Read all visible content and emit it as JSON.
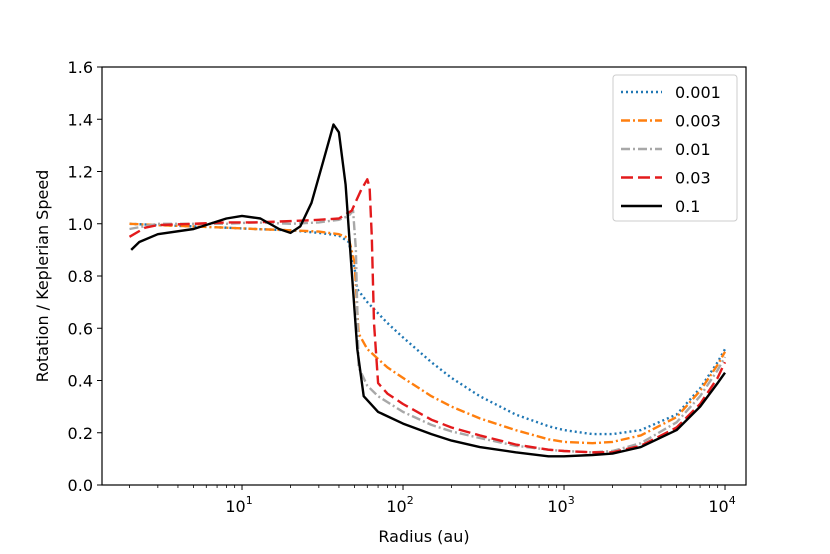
{
  "chart_data": {
    "type": "line",
    "title": "",
    "xlabel": "Radius (au)",
    "ylabel": "Rotation / Keplerian Speed",
    "xscale": "log",
    "xlim": [
      1.35,
      13500
    ],
    "ylim": [
      0.0,
      1.6
    ],
    "x_ticks": [
      {
        "value": 10,
        "base": "10",
        "exp": "1"
      },
      {
        "value": 100,
        "base": "10",
        "exp": "2"
      },
      {
        "value": 1000,
        "base": "10",
        "exp": "3"
      },
      {
        "value": 10000,
        "base": "10",
        "exp": "4"
      }
    ],
    "y_ticks": [
      0.0,
      0.2,
      0.4,
      0.6,
      0.8,
      1.0,
      1.2,
      1.4,
      1.6
    ],
    "y_tick_labels": [
      "0.0",
      "0.2",
      "0.4",
      "0.6",
      "0.8",
      "1.0",
      "1.2",
      "1.4",
      "1.6"
    ],
    "grid": false,
    "legend_position": "top-right",
    "series": [
      {
        "name": "0.001",
        "color": "#1f77b4",
        "dash": "2 3",
        "points": [
          [
            2,
            1.0
          ],
          [
            3,
            0.995
          ],
          [
            5,
            0.99
          ],
          [
            8,
            0.985
          ],
          [
            12,
            0.98
          ],
          [
            20,
            0.975
          ],
          [
            30,
            0.965
          ],
          [
            40,
            0.955
          ],
          [
            46,
            0.93
          ],
          [
            50,
            0.83
          ],
          [
            52,
            0.75
          ],
          [
            60,
            0.7
          ],
          [
            80,
            0.62
          ],
          [
            100,
            0.565
          ],
          [
            150,
            0.47
          ],
          [
            200,
            0.41
          ],
          [
            300,
            0.34
          ],
          [
            500,
            0.27
          ],
          [
            800,
            0.225
          ],
          [
            1000,
            0.21
          ],
          [
            1500,
            0.195
          ],
          [
            2000,
            0.195
          ],
          [
            3000,
            0.21
          ],
          [
            5000,
            0.27
          ],
          [
            7000,
            0.37
          ],
          [
            9000,
            0.47
          ],
          [
            10000,
            0.52
          ]
        ]
      },
      {
        "name": "0.003",
        "color": "#ff7f0e",
        "dash": "9 3 2 3",
        "points": [
          [
            2,
            1.0
          ],
          [
            3,
            0.995
          ],
          [
            5,
            0.99
          ],
          [
            8,
            0.985
          ],
          [
            12,
            0.98
          ],
          [
            20,
            0.975
          ],
          [
            30,
            0.97
          ],
          [
            40,
            0.96
          ],
          [
            46,
            0.945
          ],
          [
            50,
            0.85
          ],
          [
            53,
            0.58
          ],
          [
            60,
            0.52
          ],
          [
            80,
            0.45
          ],
          [
            100,
            0.41
          ],
          [
            150,
            0.34
          ],
          [
            200,
            0.3
          ],
          [
            300,
            0.255
          ],
          [
            500,
            0.21
          ],
          [
            800,
            0.175
          ],
          [
            1000,
            0.165
          ],
          [
            1500,
            0.16
          ],
          [
            2000,
            0.165
          ],
          [
            3000,
            0.19
          ],
          [
            5000,
            0.26
          ],
          [
            7000,
            0.36
          ],
          [
            9000,
            0.46
          ],
          [
            10000,
            0.51
          ]
        ]
      },
      {
        "name": "0.01",
        "color": "#a8a8a8",
        "dash": "9 3 2 3",
        "points": [
          [
            2,
            0.98
          ],
          [
            3,
            1.0
          ],
          [
            5,
            1.0
          ],
          [
            8,
            1.0
          ],
          [
            12,
            1.005
          ],
          [
            20,
            1.0
          ],
          [
            30,
            1.005
          ],
          [
            40,
            1.015
          ],
          [
            46,
            1.03
          ],
          [
            49,
            1.05
          ],
          [
            51,
            0.9
          ],
          [
            53,
            0.45
          ],
          [
            60,
            0.38
          ],
          [
            70,
            0.34
          ],
          [
            100,
            0.28
          ],
          [
            150,
            0.23
          ],
          [
            200,
            0.205
          ],
          [
            300,
            0.18
          ],
          [
            500,
            0.15
          ],
          [
            800,
            0.135
          ],
          [
            1000,
            0.13
          ],
          [
            1500,
            0.125
          ],
          [
            2000,
            0.13
          ],
          [
            3000,
            0.16
          ],
          [
            5000,
            0.24
          ],
          [
            7000,
            0.34
          ],
          [
            9000,
            0.44
          ],
          [
            10000,
            0.49
          ]
        ]
      },
      {
        "name": "0.03",
        "color": "#e31a1c",
        "dash": "12 5",
        "points": [
          [
            2,
            0.95
          ],
          [
            2.5,
            0.985
          ],
          [
            3,
            0.995
          ],
          [
            5,
            1.0
          ],
          [
            8,
            1.005
          ],
          [
            12,
            1.005
          ],
          [
            20,
            1.01
          ],
          [
            30,
            1.015
          ],
          [
            40,
            1.02
          ],
          [
            48,
            1.05
          ],
          [
            55,
            1.13
          ],
          [
            60,
            1.17
          ],
          [
            62,
            1.14
          ],
          [
            64,
            0.95
          ],
          [
            66,
            0.62
          ],
          [
            70,
            0.39
          ],
          [
            80,
            0.35
          ],
          [
            100,
            0.31
          ],
          [
            150,
            0.25
          ],
          [
            200,
            0.22
          ],
          [
            300,
            0.19
          ],
          [
            500,
            0.155
          ],
          [
            800,
            0.135
          ],
          [
            1000,
            0.13
          ],
          [
            1500,
            0.125
          ],
          [
            2000,
            0.125
          ],
          [
            3000,
            0.15
          ],
          [
            5000,
            0.22
          ],
          [
            7000,
            0.31
          ],
          [
            9000,
            0.41
          ],
          [
            10000,
            0.47
          ]
        ]
      },
      {
        "name": "0.1",
        "color": "#000000",
        "dash": "",
        "points": [
          [
            2.05,
            0.9
          ],
          [
            2.3,
            0.93
          ],
          [
            3,
            0.96
          ],
          [
            5,
            0.98
          ],
          [
            8,
            1.02
          ],
          [
            10,
            1.03
          ],
          [
            13,
            1.02
          ],
          [
            17,
            0.98
          ],
          [
            20,
            0.965
          ],
          [
            23,
            0.99
          ],
          [
            27,
            1.08
          ],
          [
            32,
            1.24
          ],
          [
            37,
            1.38
          ],
          [
            40,
            1.35
          ],
          [
            44,
            1.15
          ],
          [
            48,
            0.82
          ],
          [
            52,
            0.52
          ],
          [
            57,
            0.34
          ],
          [
            70,
            0.28
          ],
          [
            100,
            0.235
          ],
          [
            150,
            0.195
          ],
          [
            200,
            0.17
          ],
          [
            300,
            0.145
          ],
          [
            500,
            0.125
          ],
          [
            800,
            0.11
          ],
          [
            1000,
            0.11
          ],
          [
            1500,
            0.115
          ],
          [
            2000,
            0.12
          ],
          [
            3000,
            0.145
          ],
          [
            5000,
            0.21
          ],
          [
            7000,
            0.3
          ],
          [
            9000,
            0.39
          ],
          [
            10000,
            0.43
          ]
        ]
      }
    ]
  }
}
